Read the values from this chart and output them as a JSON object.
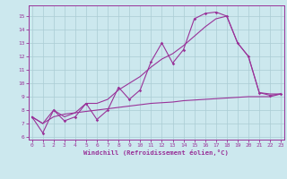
{
  "bg_color": "#cce8ee",
  "grid_color": "#aaccd4",
  "line_color": "#993399",
  "xlim": [
    -0.3,
    23.3
  ],
  "ylim": [
    5.8,
    15.8
  ],
  "xticks": [
    0,
    1,
    2,
    3,
    4,
    5,
    6,
    7,
    8,
    9,
    10,
    11,
    12,
    13,
    14,
    15,
    16,
    17,
    18,
    19,
    20,
    21,
    22,
    23
  ],
  "yticks": [
    6,
    7,
    8,
    9,
    10,
    11,
    12,
    13,
    14,
    15
  ],
  "xlabel": "Windchill (Refroidissement éolien,°C)",
  "s1_x": [
    0,
    1,
    2,
    3,
    4,
    5,
    6,
    7,
    8,
    9,
    10,
    11,
    12,
    13,
    14,
    15,
    16,
    17,
    18,
    19,
    20,
    21,
    22,
    23
  ],
  "s1_y": [
    7.5,
    6.3,
    8.0,
    7.2,
    7.5,
    8.5,
    7.3,
    8.0,
    9.7,
    8.8,
    9.5,
    11.6,
    13.0,
    11.5,
    12.5,
    14.8,
    15.2,
    15.3,
    15.0,
    13.0,
    12.0,
    9.3,
    9.1,
    9.2
  ],
  "s2_x": [
    0,
    1,
    2,
    3,
    4,
    5,
    6,
    7,
    8,
    9,
    10,
    11,
    12,
    13,
    14,
    15,
    16,
    17,
    18,
    19,
    20,
    21,
    22,
    23
  ],
  "s2_y": [
    7.5,
    7.0,
    8.0,
    7.5,
    7.8,
    8.5,
    8.5,
    8.8,
    9.5,
    10.0,
    10.5,
    11.2,
    11.8,
    12.2,
    12.8,
    13.5,
    14.2,
    14.8,
    15.0,
    13.0,
    12.0,
    9.3,
    9.2,
    9.2
  ],
  "s3_x": [
    0,
    1,
    2,
    3,
    4,
    5,
    6,
    7,
    8,
    9,
    10,
    11,
    12,
    13,
    14,
    15,
    16,
    17,
    18,
    19,
    20,
    21,
    22,
    23
  ],
  "s3_y": [
    7.5,
    7.0,
    7.5,
    7.7,
    7.8,
    7.9,
    8.0,
    8.1,
    8.2,
    8.3,
    8.4,
    8.5,
    8.55,
    8.6,
    8.7,
    8.75,
    8.8,
    8.85,
    8.9,
    8.95,
    9.0,
    9.0,
    9.0,
    9.2
  ]
}
